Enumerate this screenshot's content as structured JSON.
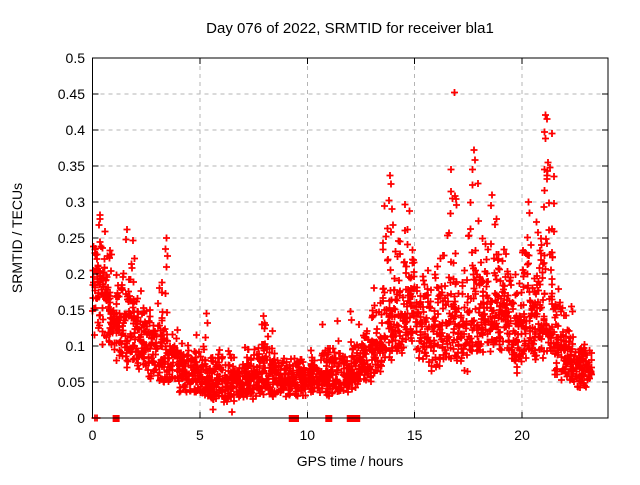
{
  "window": {
    "background": "#ffffff"
  },
  "chart_data": {
    "type": "scatter",
    "title": "Day 076 of 2022, SRMTID for receiver bla1",
    "xlabel": "GPS time / hours",
    "ylabel": "SRMTID / TECUs",
    "xlim": [
      0,
      24
    ],
    "ylim": [
      0,
      0.5
    ],
    "grid": true,
    "legend": "none",
    "xticks": [
      {
        "v": 0,
        "label": "0"
      },
      {
        "v": 5,
        "label": "5"
      },
      {
        "v": 10,
        "label": "10"
      },
      {
        "v": 15,
        "label": "15"
      },
      {
        "v": 20,
        "label": "20"
      }
    ],
    "yticks": [
      {
        "v": 0,
        "label": "0"
      },
      {
        "v": 0.05,
        "label": "0.05"
      },
      {
        "v": 0.1,
        "label": "0.1"
      },
      {
        "v": 0.15,
        "label": "0.15"
      },
      {
        "v": 0.2,
        "label": "0.2"
      },
      {
        "v": 0.25,
        "label": "0.25"
      },
      {
        "v": 0.3,
        "label": "0.3"
      },
      {
        "v": 0.35,
        "label": "0.35"
      },
      {
        "v": 0.4,
        "label": "0.4"
      },
      {
        "v": 0.45,
        "label": "0.45"
      },
      {
        "v": 0.5,
        "label": "0.5"
      }
    ],
    "marker": {
      "shape": "plus",
      "color": "#ff0000",
      "size": 7
    },
    "gap_marker": {
      "shape": "square",
      "color": "#ff0000",
      "size": 7
    },
    "colors": {
      "grid": "#b4b4b4",
      "axis": "#000000",
      "text": "#000000"
    },
    "seed": 20220761,
    "density_bands": [
      [
        0.0,
        0.3,
        35,
        0.09,
        0.26,
        0.19
      ],
      [
        0.3,
        0.7,
        45,
        0.1,
        0.28,
        0.18
      ],
      [
        0.7,
        1.0,
        40,
        0.09,
        0.24,
        0.15
      ],
      [
        1.0,
        1.5,
        55,
        0.08,
        0.22,
        0.13
      ],
      [
        1.5,
        2.0,
        60,
        0.07,
        0.26,
        0.13
      ],
      [
        2.0,
        2.5,
        55,
        0.06,
        0.19,
        0.11
      ],
      [
        2.5,
        3.0,
        50,
        0.05,
        0.16,
        0.1
      ],
      [
        3.0,
        3.5,
        55,
        0.05,
        0.22,
        0.09
      ],
      [
        3.5,
        4.0,
        50,
        0.04,
        0.14,
        0.08
      ],
      [
        4.0,
        4.5,
        52,
        0.035,
        0.12,
        0.07
      ],
      [
        4.5,
        5.0,
        52,
        0.03,
        0.1,
        0.06
      ],
      [
        5.0,
        5.5,
        55,
        0.03,
        0.13,
        0.055
      ],
      [
        5.5,
        6.0,
        55,
        0.025,
        0.1,
        0.05
      ],
      [
        6.0,
        6.5,
        55,
        0.02,
        0.095,
        0.05
      ],
      [
        6.5,
        7.0,
        55,
        0.02,
        0.09,
        0.05
      ],
      [
        7.0,
        7.5,
        55,
        0.025,
        0.1,
        0.055
      ],
      [
        7.5,
        8.0,
        55,
        0.03,
        0.13,
        0.06
      ],
      [
        8.0,
        8.5,
        55,
        0.03,
        0.145,
        0.06
      ],
      [
        8.5,
        9.0,
        50,
        0.03,
        0.1,
        0.055
      ],
      [
        9.0,
        9.5,
        45,
        0.03,
        0.09,
        0.05
      ],
      [
        9.5,
        10.0,
        48,
        0.03,
        0.1,
        0.055
      ],
      [
        10.0,
        10.5,
        50,
        0.03,
        0.1,
        0.055
      ],
      [
        10.5,
        11.0,
        50,
        0.03,
        0.105,
        0.06
      ],
      [
        11.0,
        11.5,
        52,
        0.03,
        0.12,
        0.06
      ],
      [
        11.5,
        12.0,
        50,
        0.035,
        0.1,
        0.06
      ],
      [
        12.0,
        12.5,
        52,
        0.04,
        0.12,
        0.07
      ],
      [
        12.5,
        13.0,
        52,
        0.05,
        0.13,
        0.08
      ],
      [
        13.0,
        13.5,
        55,
        0.06,
        0.21,
        0.1
      ],
      [
        13.5,
        14.0,
        58,
        0.08,
        0.33,
        0.13
      ],
      [
        14.0,
        14.5,
        52,
        0.08,
        0.26,
        0.14
      ],
      [
        14.5,
        15.0,
        62,
        0.1,
        0.31,
        0.16
      ],
      [
        15.0,
        15.5,
        50,
        0.06,
        0.23,
        0.13
      ],
      [
        15.5,
        16.0,
        46,
        0.05,
        0.22,
        0.12
      ],
      [
        16.0,
        16.5,
        50,
        0.06,
        0.25,
        0.13
      ],
      [
        16.5,
        17.0,
        52,
        0.08,
        0.36,
        0.15
      ],
      [
        17.0,
        17.5,
        48,
        0.06,
        0.24,
        0.13
      ],
      [
        17.5,
        18.0,
        52,
        0.09,
        0.37,
        0.15
      ],
      [
        18.0,
        18.5,
        58,
        0.09,
        0.26,
        0.15
      ],
      [
        18.5,
        19.0,
        58,
        0.09,
        0.31,
        0.15
      ],
      [
        19.0,
        19.5,
        55,
        0.09,
        0.25,
        0.15
      ],
      [
        19.5,
        20.0,
        52,
        0.06,
        0.22,
        0.12
      ],
      [
        20.0,
        20.5,
        60,
        0.08,
        0.3,
        0.14
      ],
      [
        20.5,
        21.0,
        60,
        0.08,
        0.31,
        0.15
      ],
      [
        21.0,
        21.5,
        60,
        0.09,
        0.42,
        0.16
      ],
      [
        21.5,
        22.0,
        55,
        0.05,
        0.21,
        0.1
      ],
      [
        22.0,
        22.5,
        50,
        0.05,
        0.16,
        0.08
      ],
      [
        22.5,
        23.0,
        55,
        0.04,
        0.12,
        0.07
      ],
      [
        23.0,
        23.25,
        22,
        0.05,
        0.1,
        0.07
      ]
    ],
    "notable_points": [
      [
        0.12,
        0.0
      ],
      [
        0.2,
        0.0
      ],
      [
        0.35,
        0.282
      ],
      [
        0.3,
        0.268
      ],
      [
        1.6,
        0.262
      ],
      [
        1.55,
        0.248
      ],
      [
        3.45,
        0.25
      ],
      [
        3.4,
        0.235
      ],
      [
        3.5,
        0.225
      ],
      [
        4.85,
        0.115
      ],
      [
        5.3,
        0.145
      ],
      [
        5.35,
        0.132
      ],
      [
        5.6,
        0.012
      ],
      [
        6.5,
        0.008
      ],
      [
        7.95,
        0.142
      ],
      [
        7.9,
        0.13
      ],
      [
        8.0,
        0.124
      ],
      [
        10.7,
        0.13
      ],
      [
        11.4,
        0.135
      ],
      [
        12.0,
        0.148
      ],
      [
        12.05,
        0.136
      ],
      [
        12.4,
        0.13
      ],
      [
        13.85,
        0.337
      ],
      [
        13.9,
        0.325
      ],
      [
        13.8,
        0.302
      ],
      [
        13.95,
        0.29
      ],
      [
        16.7,
        0.345
      ],
      [
        16.75,
        0.305
      ],
      [
        16.85,
        0.452
      ],
      [
        17.75,
        0.372
      ],
      [
        17.8,
        0.358
      ],
      [
        17.7,
        0.345
      ],
      [
        18.6,
        0.31
      ],
      [
        18.55,
        0.295
      ],
      [
        20.3,
        0.3
      ],
      [
        20.35,
        0.285
      ],
      [
        21.1,
        0.421
      ],
      [
        21.15,
        0.415
      ],
      [
        21.05,
        0.397
      ],
      [
        21.1,
        0.388
      ],
      [
        21.2,
        0.355
      ],
      [
        21.05,
        0.345
      ],
      [
        21.15,
        0.332
      ],
      [
        22.3,
        0.155
      ],
      [
        22.35,
        0.148
      ]
    ],
    "gap_marker_x": [
      1.1,
      9.3,
      9.45,
      11.0,
      12.0,
      12.1,
      12.2,
      12.3
    ]
  }
}
